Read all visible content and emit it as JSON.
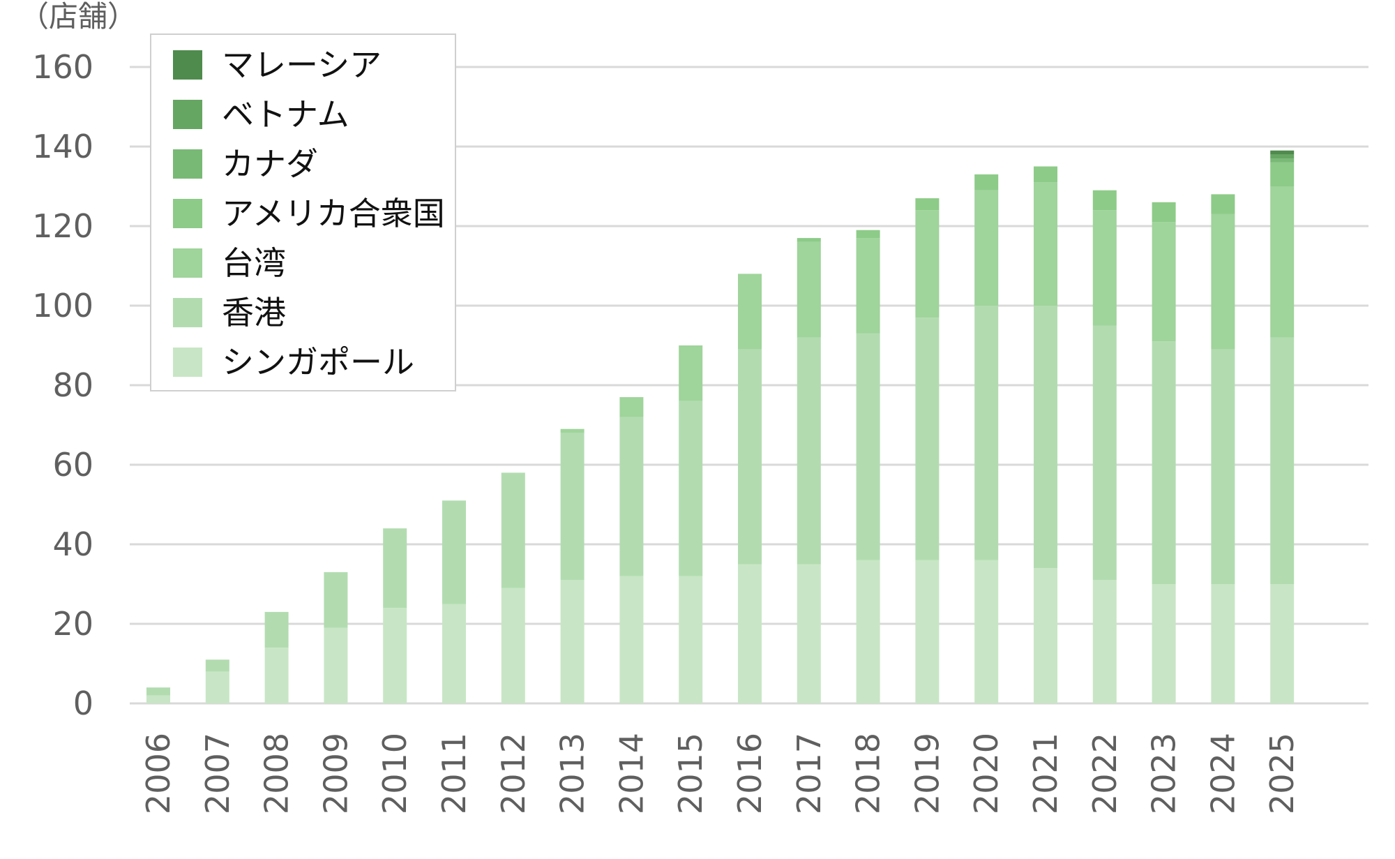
{
  "chart_data": {
    "type": "bar",
    "stacked": true,
    "ylabel": "（店舗）",
    "xlabel": "",
    "ylim": [
      0,
      160
    ],
    "yticks": [
      0,
      20,
      40,
      60,
      80,
      100,
      120,
      140,
      160
    ],
    "grid": true,
    "legend_position": "top-left",
    "categories": [
      "2006",
      "2007",
      "2008",
      "2009",
      "2010",
      "2011",
      "2012",
      "2013",
      "2014",
      "2015",
      "2016",
      "2017",
      "2018",
      "2019",
      "2020",
      "2021",
      "2022",
      "2023",
      "2024",
      "2025"
    ],
    "series": [
      {
        "name": "シンガポール",
        "color": "#c8e6c5",
        "values": [
          2,
          8,
          14,
          19,
          24,
          25,
          29,
          31,
          32,
          32,
          35,
          35,
          36,
          36,
          36,
          34,
          31,
          30,
          30,
          30
        ]
      },
      {
        "name": "香港",
        "color": "#b2dcb0",
        "values": [
          2,
          3,
          9,
          14,
          20,
          26,
          29,
          37,
          40,
          44,
          54,
          57,
          57,
          61,
          64,
          66,
          64,
          61,
          59,
          62
        ]
      },
      {
        "name": "台湾",
        "color": "#9fd49b",
        "values": [
          0,
          0,
          0,
          0,
          0,
          0,
          0,
          1,
          5,
          14,
          19,
          24,
          24,
          27,
          29,
          31,
          29,
          30,
          34,
          38
        ]
      },
      {
        "name": "アメリカ合衆国",
        "color": "#8dcb88",
        "values": [
          0,
          0,
          0,
          0,
          0,
          0,
          0,
          0,
          0,
          0,
          0,
          1,
          2,
          3,
          4,
          4,
          5,
          5,
          5,
          6
        ]
      },
      {
        "name": "カナダ",
        "color": "#79b976",
        "values": [
          0,
          0,
          0,
          0,
          0,
          0,
          0,
          0,
          0,
          0,
          0,
          0,
          0,
          0,
          0,
          0,
          0,
          0,
          0,
          1
        ]
      },
      {
        "name": "ベトナム",
        "color": "#66a663",
        "values": [
          0,
          0,
          0,
          0,
          0,
          0,
          0,
          0,
          0,
          0,
          0,
          0,
          0,
          0,
          0,
          0,
          0,
          0,
          0,
          1
        ]
      },
      {
        "name": "マレーシア",
        "color": "#4f8b4d",
        "values": [
          0,
          0,
          0,
          0,
          0,
          0,
          0,
          0,
          0,
          0,
          0,
          0,
          0,
          0,
          0,
          0,
          0,
          0,
          0,
          1
        ]
      }
    ]
  }
}
